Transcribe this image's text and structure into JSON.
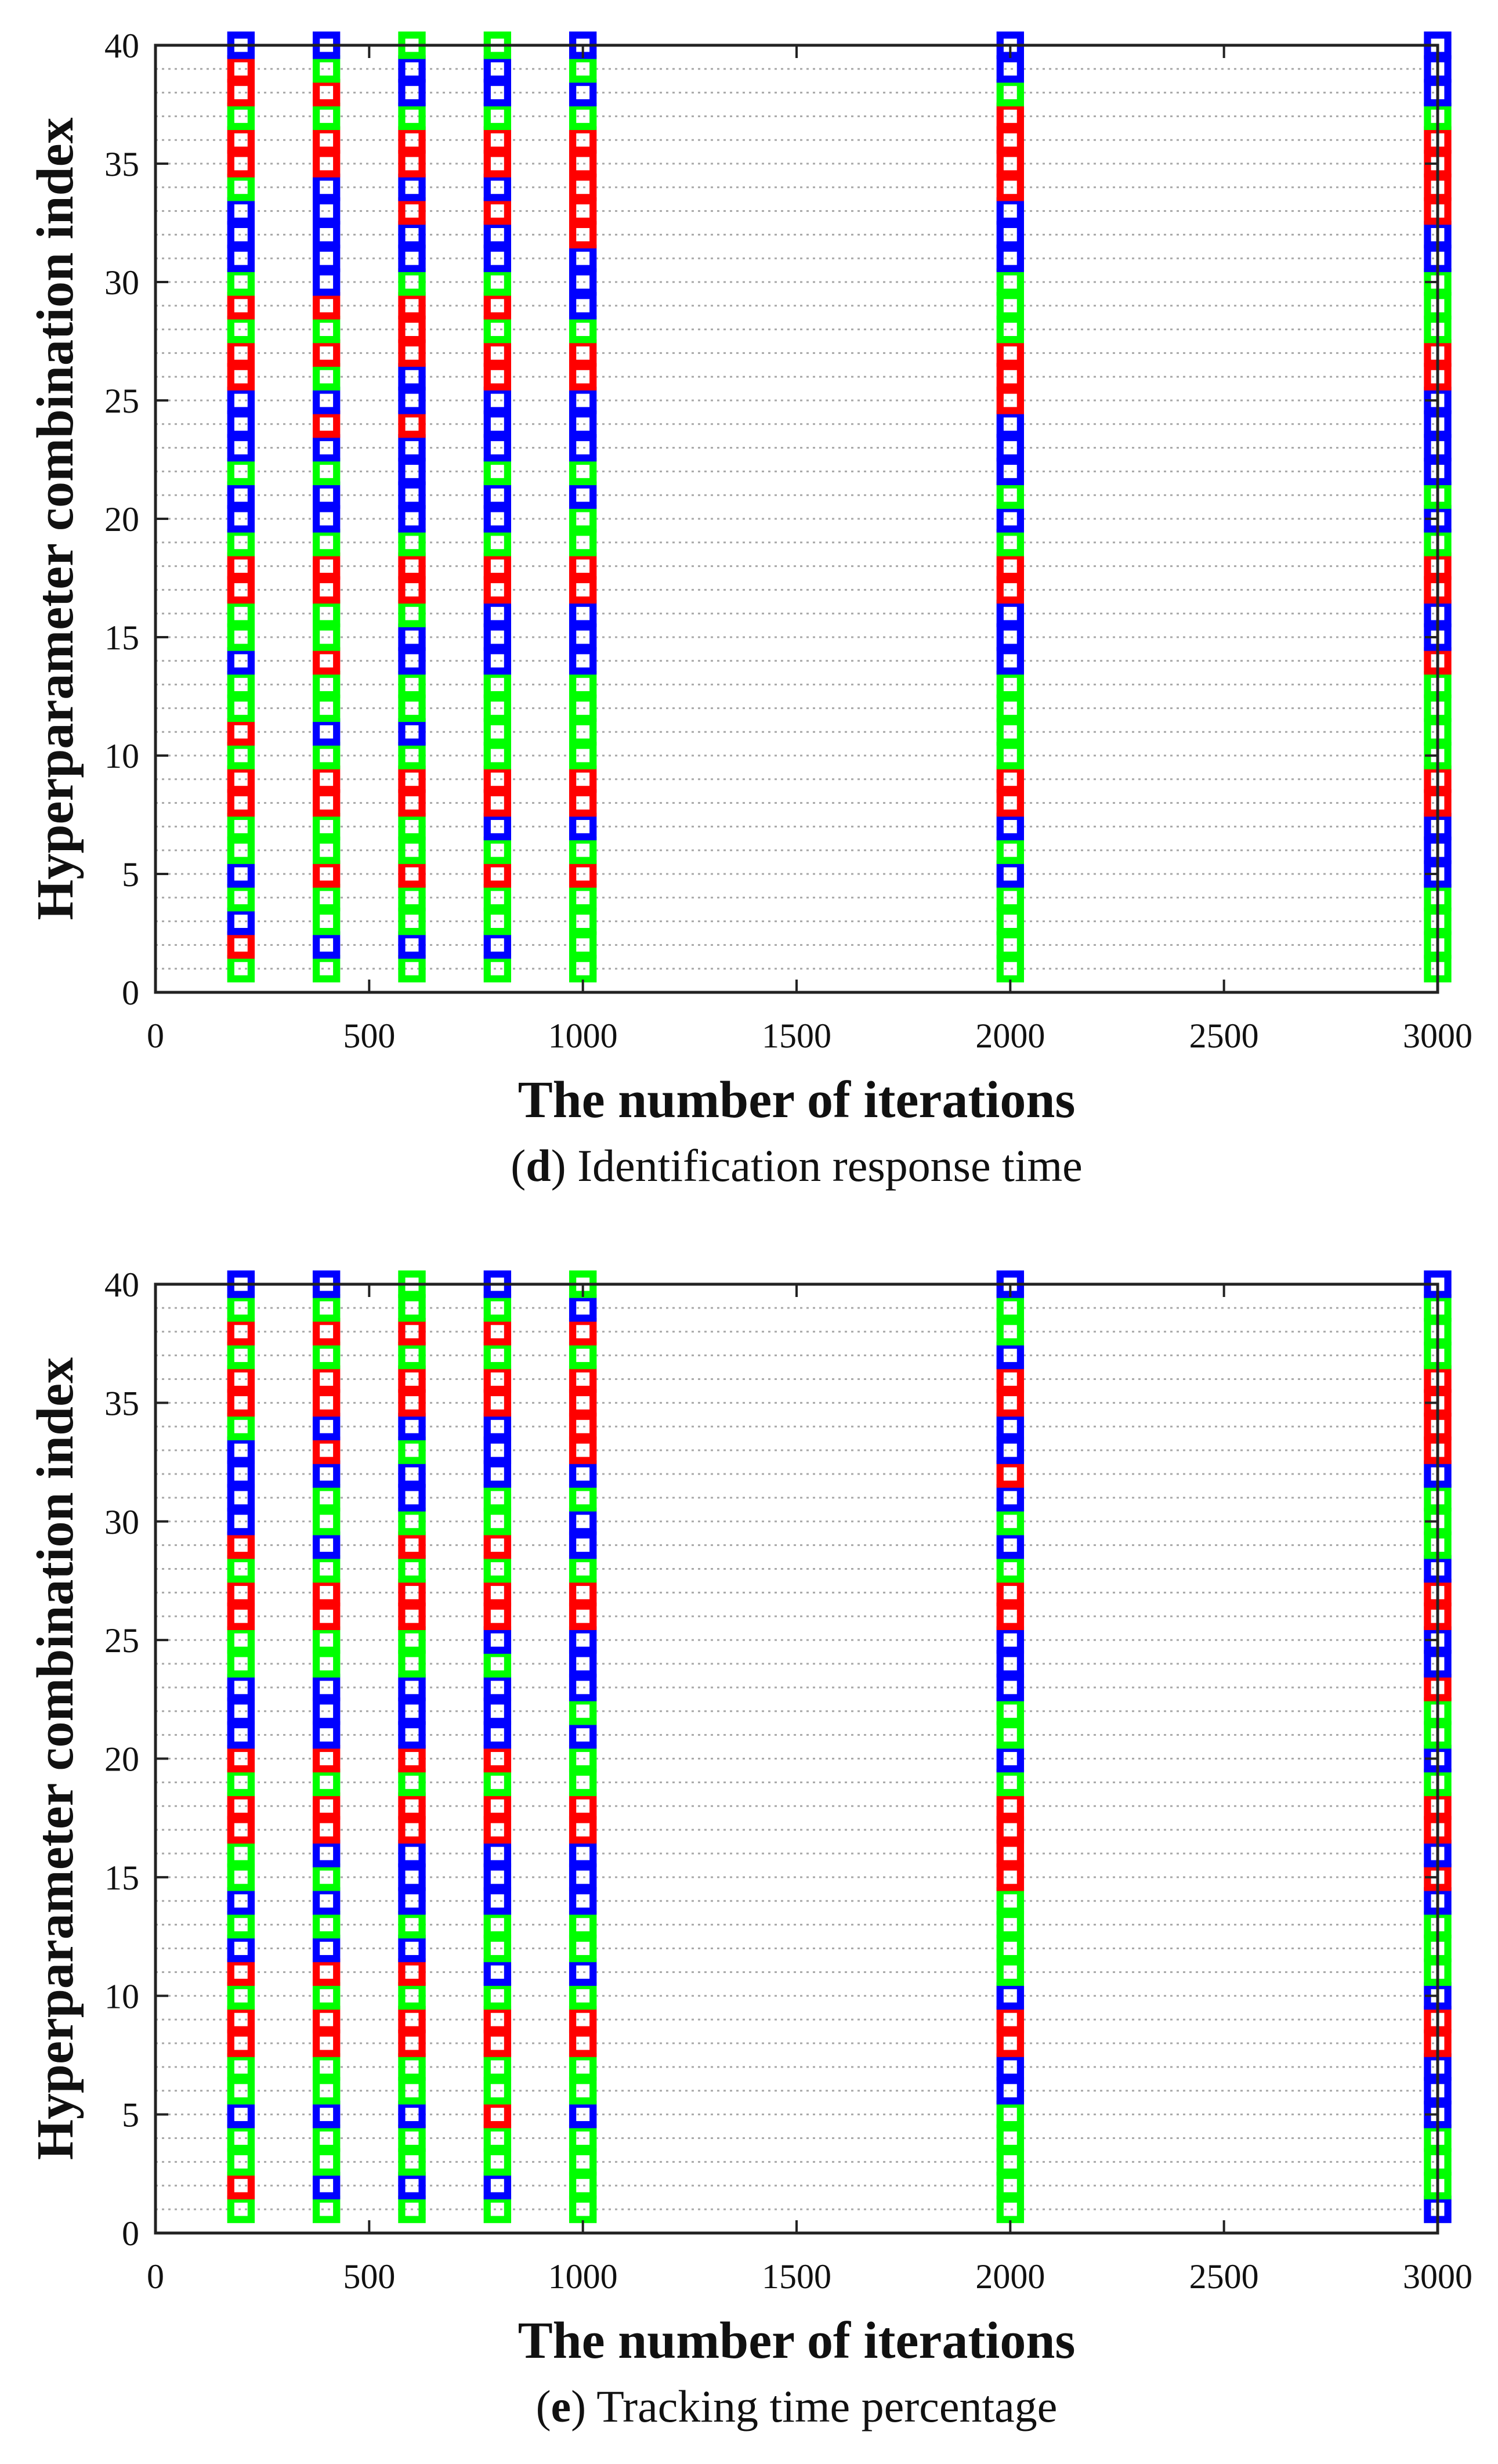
{
  "colors": {
    "red": "#ff0000",
    "green": "#00ff00",
    "blue": "#0000ff",
    "frame": "#222222",
    "grid": "#a8a8a8"
  },
  "chart_data": [
    {
      "type": "scatter",
      "caption_letter": "d",
      "caption_text": "Identification response time",
      "caption_prefix": "(",
      "caption_suffix": ")",
      "xlabel": "The number of iterations",
      "ylabel": "Hyperparameter combination index",
      "xlim": [
        0,
        3000
      ],
      "ylim": [
        0,
        40
      ],
      "xticks": [
        "0",
        "500",
        "1000",
        "1500",
        "2000",
        "2500",
        "3000"
      ],
      "yticks": [
        "0",
        "5",
        "10",
        "15",
        "20",
        "25",
        "30",
        "35",
        "40"
      ],
      "grid": "horizontal dotted lines at every index",
      "marker": "hollow square",
      "x": [
        200,
        400,
        600,
        800,
        1000,
        2000,
        3000
      ],
      "index": [
        1,
        2,
        3,
        4,
        5,
        6,
        7,
        8,
        9,
        10,
        11,
        12,
        13,
        14,
        15,
        16,
        17,
        18,
        19,
        20,
        21,
        22,
        23,
        24,
        25,
        26,
        27,
        28,
        29,
        30,
        31,
        32,
        33,
        34,
        35,
        36,
        37,
        38,
        39,
        40
      ],
      "series": [
        {
          "name": "200",
          "colors": [
            "G",
            "R",
            "B",
            "G",
            "B",
            "G",
            "G",
            "R",
            "R",
            "G",
            "R",
            "G",
            "G",
            "B",
            "G",
            "G",
            "R",
            "R",
            "G",
            "B",
            "B",
            "G",
            "B",
            "B",
            "B",
            "R",
            "R",
            "G",
            "R",
            "G",
            "B",
            "B",
            "B",
            "G",
            "R",
            "R",
            "G",
            "R",
            "R",
            "B"
          ]
        },
        {
          "name": "400",
          "colors": [
            "G",
            "B",
            "G",
            "G",
            "R",
            "G",
            "G",
            "R",
            "R",
            "G",
            "B",
            "G",
            "G",
            "R",
            "G",
            "G",
            "R",
            "R",
            "G",
            "B",
            "B",
            "G",
            "B",
            "R",
            "B",
            "G",
            "R",
            "G",
            "R",
            "B",
            "B",
            "B",
            "B",
            "B",
            "R",
            "R",
            "G",
            "R",
            "G",
            "B"
          ]
        },
        {
          "name": "600",
          "colors": [
            "G",
            "B",
            "G",
            "G",
            "R",
            "G",
            "G",
            "R",
            "R",
            "G",
            "B",
            "G",
            "G",
            "B",
            "B",
            "G",
            "R",
            "R",
            "G",
            "B",
            "B",
            "B",
            "B",
            "R",
            "B",
            "B",
            "R",
            "R",
            "R",
            "G",
            "B",
            "B",
            "R",
            "B",
            "R",
            "R",
            "G",
            "B",
            "B",
            "G"
          ]
        },
        {
          "name": "800",
          "colors": [
            "G",
            "B",
            "G",
            "G",
            "R",
            "G",
            "B",
            "R",
            "R",
            "G",
            "G",
            "G",
            "G",
            "B",
            "B",
            "B",
            "R",
            "R",
            "G",
            "B",
            "B",
            "G",
            "B",
            "B",
            "B",
            "R",
            "R",
            "G",
            "R",
            "G",
            "B",
            "B",
            "R",
            "B",
            "R",
            "R",
            "G",
            "B",
            "B",
            "G"
          ]
        },
        {
          "name": "1000",
          "colors": [
            "G",
            "G",
            "G",
            "G",
            "R",
            "G",
            "B",
            "R",
            "R",
            "G",
            "G",
            "G",
            "G",
            "B",
            "B",
            "B",
            "R",
            "R",
            "G",
            "G",
            "B",
            "G",
            "B",
            "B",
            "B",
            "R",
            "R",
            "G",
            "B",
            "B",
            "B",
            "R",
            "R",
            "R",
            "R",
            "R",
            "G",
            "B",
            "G",
            "B"
          ]
        },
        {
          "name": "2000",
          "colors": [
            "G",
            "G",
            "G",
            "G",
            "B",
            "G",
            "B",
            "R",
            "R",
            "G",
            "G",
            "G",
            "G",
            "B",
            "B",
            "B",
            "R",
            "R",
            "G",
            "B",
            "G",
            "B",
            "B",
            "B",
            "R",
            "R",
            "R",
            "G",
            "G",
            "G",
            "B",
            "B",
            "B",
            "R",
            "R",
            "R",
            "R",
            "G",
            "B",
            "B"
          ]
        },
        {
          "name": "3000",
          "colors": [
            "G",
            "G",
            "G",
            "G",
            "B",
            "B",
            "B",
            "R",
            "R",
            "G",
            "G",
            "G",
            "G",
            "R",
            "B",
            "B",
            "R",
            "R",
            "G",
            "B",
            "G",
            "B",
            "B",
            "B",
            "B",
            "R",
            "R",
            "G",
            "G",
            "G",
            "B",
            "B",
            "R",
            "R",
            "R",
            "R",
            "G",
            "B",
            "B",
            "B"
          ]
        }
      ]
    },
    {
      "type": "scatter",
      "caption_letter": "e",
      "caption_text": "Tracking time percentage",
      "caption_prefix": "(",
      "caption_suffix": ")",
      "xlabel": "The number of iterations",
      "ylabel": "Hyperparameter combination index",
      "xlim": [
        0,
        3000
      ],
      "ylim": [
        0,
        40
      ],
      "xticks": [
        "0",
        "500",
        "1000",
        "1500",
        "2000",
        "2500",
        "3000"
      ],
      "yticks": [
        "0",
        "5",
        "10",
        "15",
        "20",
        "25",
        "30",
        "35",
        "40"
      ],
      "grid": "horizontal dotted lines at every index",
      "marker": "hollow square",
      "x": [
        200,
        400,
        600,
        800,
        1000,
        2000,
        3000
      ],
      "index": [
        1,
        2,
        3,
        4,
        5,
        6,
        7,
        8,
        9,
        10,
        11,
        12,
        13,
        14,
        15,
        16,
        17,
        18,
        19,
        20,
        21,
        22,
        23,
        24,
        25,
        26,
        27,
        28,
        29,
        30,
        31,
        32,
        33,
        34,
        35,
        36,
        37,
        38,
        39,
        40
      ],
      "series": [
        {
          "name": "200",
          "colors": [
            "G",
            "R",
            "G",
            "G",
            "B",
            "G",
            "G",
            "R",
            "R",
            "G",
            "R",
            "B",
            "G",
            "B",
            "G",
            "G",
            "R",
            "R",
            "G",
            "R",
            "B",
            "B",
            "B",
            "G",
            "G",
            "R",
            "R",
            "G",
            "R",
            "B",
            "B",
            "B",
            "B",
            "G",
            "R",
            "R",
            "G",
            "R",
            "G",
            "B"
          ]
        },
        {
          "name": "400",
          "colors": [
            "G",
            "B",
            "G",
            "G",
            "B",
            "G",
            "G",
            "R",
            "R",
            "G",
            "R",
            "B",
            "G",
            "B",
            "G",
            "B",
            "R",
            "R",
            "G",
            "R",
            "B",
            "B",
            "B",
            "G",
            "G",
            "R",
            "R",
            "G",
            "B",
            "G",
            "G",
            "B",
            "R",
            "B",
            "R",
            "R",
            "G",
            "R",
            "G",
            "B"
          ]
        },
        {
          "name": "600",
          "colors": [
            "G",
            "B",
            "G",
            "G",
            "B",
            "G",
            "G",
            "R",
            "R",
            "G",
            "R",
            "B",
            "G",
            "B",
            "B",
            "B",
            "R",
            "R",
            "G",
            "R",
            "B",
            "B",
            "B",
            "G",
            "G",
            "R",
            "R",
            "G",
            "R",
            "G",
            "B",
            "B",
            "G",
            "B",
            "R",
            "R",
            "G",
            "R",
            "G",
            "G"
          ]
        },
        {
          "name": "800",
          "colors": [
            "G",
            "B",
            "G",
            "G",
            "R",
            "G",
            "G",
            "R",
            "R",
            "G",
            "B",
            "G",
            "G",
            "B",
            "B",
            "B",
            "R",
            "R",
            "G",
            "R",
            "B",
            "B",
            "B",
            "G",
            "B",
            "R",
            "R",
            "G",
            "R",
            "G",
            "G",
            "B",
            "B",
            "B",
            "R",
            "R",
            "G",
            "R",
            "G",
            "B"
          ]
        },
        {
          "name": "1000",
          "colors": [
            "G",
            "G",
            "G",
            "G",
            "B",
            "G",
            "G",
            "R",
            "R",
            "G",
            "B",
            "G",
            "G",
            "B",
            "B",
            "B",
            "R",
            "R",
            "G",
            "G",
            "B",
            "G",
            "B",
            "B",
            "B",
            "R",
            "R",
            "G",
            "B",
            "B",
            "G",
            "B",
            "R",
            "R",
            "R",
            "R",
            "G",
            "R",
            "B",
            "G"
          ]
        },
        {
          "name": "2000",
          "colors": [
            "G",
            "G",
            "G",
            "G",
            "G",
            "B",
            "B",
            "R",
            "R",
            "B",
            "G",
            "G",
            "G",
            "G",
            "R",
            "R",
            "R",
            "R",
            "G",
            "B",
            "G",
            "G",
            "B",
            "B",
            "B",
            "R",
            "R",
            "G",
            "B",
            "G",
            "B",
            "R",
            "B",
            "B",
            "R",
            "R",
            "B",
            "G",
            "G",
            "B"
          ]
        },
        {
          "name": "3000",
          "colors": [
            "B",
            "G",
            "G",
            "G",
            "B",
            "B",
            "B",
            "R",
            "R",
            "B",
            "G",
            "G",
            "G",
            "B",
            "R",
            "B",
            "R",
            "R",
            "G",
            "B",
            "G",
            "G",
            "R",
            "B",
            "B",
            "R",
            "R",
            "B",
            "G",
            "G",
            "G",
            "B",
            "R",
            "R",
            "R",
            "R",
            "G",
            "G",
            "G",
            "B"
          ]
        }
      ]
    }
  ]
}
